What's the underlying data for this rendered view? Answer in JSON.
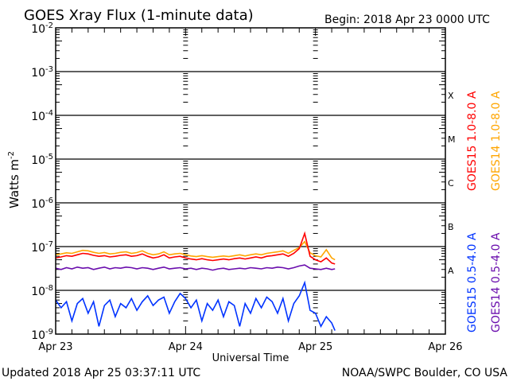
{
  "chart_data": {
    "type": "line",
    "title": "GOES Xray Flux (1-minute data)",
    "begin_label": "Begin:  2018 Apr 23 0000 UTC",
    "xlabel": "Universal Time",
    "ylabel": "Watts m",
    "ylabel_exp": "-2",
    "yscale": "log",
    "ylim": [
      1e-09,
      0.01
    ],
    "xlim_hours": [
      0,
      72
    ],
    "x_ticks": [
      {
        "hour": 0,
        "label": "Apr 23"
      },
      {
        "hour": 24,
        "label": "Apr 24"
      },
      {
        "hour": 48,
        "label": "Apr 25"
      },
      {
        "hour": 72,
        "label": "Apr 26"
      }
    ],
    "y_ticks": [
      {
        "value": 0.01,
        "base": "10",
        "exp": "-2"
      },
      {
        "value": 0.001,
        "base": "10",
        "exp": "-3"
      },
      {
        "value": 0.0001,
        "base": "10",
        "exp": "-4"
      },
      {
        "value": 1e-05,
        "base": "10",
        "exp": "-5"
      },
      {
        "value": 1e-06,
        "base": "10",
        "exp": "-6"
      },
      {
        "value": 1e-07,
        "base": "10",
        "exp": "-7"
      },
      {
        "value": 1e-08,
        "base": "10",
        "exp": "-8"
      },
      {
        "value": 1e-09,
        "base": "10",
        "exp": "-9"
      }
    ],
    "flare_classes": [
      {
        "label": "X",
        "value": 0.0003
      },
      {
        "label": "M",
        "value": 3e-05
      },
      {
        "label": "C",
        "value": 3e-06
      },
      {
        "label": "B",
        "value": 3e-07
      },
      {
        "label": "A",
        "value": 3e-08
      }
    ],
    "grid": "horizontal at decades 1e-3 to 1e-8",
    "hours": [
      0,
      1,
      2,
      3,
      4,
      5,
      6,
      7,
      8,
      9,
      10,
      11,
      12,
      13,
      14,
      15,
      16,
      17,
      18,
      19,
      20,
      21,
      22,
      23,
      24,
      25,
      26,
      27,
      28,
      29,
      30,
      31,
      32,
      33,
      34,
      35,
      36,
      37,
      38,
      39,
      40,
      41,
      42,
      43,
      44,
      45,
      46,
      47,
      48,
      49,
      50,
      51,
      51.6
    ],
    "series": [
      {
        "name": "GOES14 1.0-8.0 A",
        "color": "#ffa500",
        "values": [
          6.5e-08,
          6.8e-08,
          7.2e-08,
          7e-08,
          7.6e-08,
          8.2e-08,
          8e-08,
          7.4e-08,
          7e-08,
          7.3e-08,
          6.8e-08,
          7e-08,
          7.4e-08,
          7.6e-08,
          7e-08,
          7.3e-08,
          8e-08,
          7e-08,
          6.5e-08,
          6.8e-08,
          7.6e-08,
          6.5e-08,
          6.8e-08,
          7e-08,
          6.5e-08,
          6.1e-08,
          5.9e-08,
          6.2e-08,
          5.9e-08,
          5.7e-08,
          5.9e-08,
          6.1e-08,
          5.9e-08,
          6.2e-08,
          6.5e-08,
          6.1e-08,
          6.5e-08,
          6.8e-08,
          6.5e-08,
          7e-08,
          7.3e-08,
          7.6e-08,
          8e-08,
          7e-08,
          8.2e-08,
          9.5e-08,
          1.3e-07,
          7.2e-08,
          6.2e-08,
          5.8e-08,
          8.5e-08,
          5.5e-08,
          5e-08
        ]
      },
      {
        "name": "GOES15 1.0-8.0 A",
        "color": "#ff0000",
        "values": [
          5.5e-08,
          5.8e-08,
          6.2e-08,
          6e-08,
          6.5e-08,
          7e-08,
          6.8e-08,
          6.3e-08,
          6e-08,
          6.2e-08,
          5.8e-08,
          6e-08,
          6.3e-08,
          6.5e-08,
          6e-08,
          6.2e-08,
          6.8e-08,
          6e-08,
          5.5e-08,
          5.8e-08,
          6.5e-08,
          5.5e-08,
          5.8e-08,
          6e-08,
          5.5e-08,
          5.2e-08,
          5e-08,
          5.3e-08,
          5e-08,
          4.8e-08,
          5e-08,
          5.2e-08,
          5e-08,
          5.3e-08,
          5.5e-08,
          5.2e-08,
          5.5e-08,
          5.8e-08,
          5.5e-08,
          6e-08,
          6.2e-08,
          6.5e-08,
          6.8e-08,
          6e-08,
          7e-08,
          9e-08,
          2e-07,
          6e-08,
          5e-08,
          4.5e-08,
          5.5e-08,
          4.2e-08,
          4e-08
        ]
      },
      {
        "name": "GOES14 0.5-4.0 A",
        "color": "#6a0dad",
        "values": [
          3.2e-08,
          3e-08,
          3.3e-08,
          3.1e-08,
          3.4e-08,
          3.2e-08,
          3.3e-08,
          3e-08,
          3.2e-08,
          3.4e-08,
          3.1e-08,
          3.3e-08,
          3.2e-08,
          3.4e-08,
          3.3e-08,
          3.1e-08,
          3.3e-08,
          3.2e-08,
          3e-08,
          3.2e-08,
          3.4e-08,
          3.1e-08,
          3.2e-08,
          3.3e-08,
          3.1e-08,
          3.2e-08,
          3e-08,
          3.2e-08,
          3.1e-08,
          2.9e-08,
          3.1e-08,
          3.2e-08,
          3e-08,
          3.1e-08,
          3.2e-08,
          3.1e-08,
          3.3e-08,
          3.2e-08,
          3.1e-08,
          3.3e-08,
          3.2e-08,
          3.4e-08,
          3.3e-08,
          3.1e-08,
          3.3e-08,
          3.6e-08,
          3.8e-08,
          3.2e-08,
          3.1e-08,
          3e-08,
          3.2e-08,
          3e-08,
          3.1e-08
        ]
      },
      {
        "name": "GOES15 0.5-4.0 A",
        "color": "#0033ff",
        "values": [
          6e-09,
          4e-09,
          5.5e-09,
          2e-09,
          5e-09,
          6.5e-09,
          3e-09,
          5.5e-09,
          1.5e-09,
          4.5e-09,
          6e-09,
          2.5e-09,
          5e-09,
          4e-09,
          6.5e-09,
          3.5e-09,
          5.5e-09,
          7.5e-09,
          4.5e-09,
          6e-09,
          7e-09,
          3e-09,
          5.5e-09,
          8.5e-09,
          6.5e-09,
          4e-09,
          6e-09,
          2e-09,
          5e-09,
          3.5e-09,
          6e-09,
          2.5e-09,
          5.5e-09,
          4.5e-09,
          1.5e-09,
          5e-09,
          3e-09,
          6.5e-09,
          4e-09,
          7e-09,
          5.5e-09,
          3e-09,
          6.5e-09,
          2e-09,
          5e-09,
          7.5e-09,
          1.5e-08,
          3.5e-09,
          3e-09,
          1.5e-09,
          2.5e-09,
          1.8e-09,
          1.2e-09
        ]
      }
    ],
    "legend": [
      {
        "text": "GOES15 1.0-8.0 A",
        "color": "#ff0000"
      },
      {
        "text": "GOES14 1.0-8.0 A",
        "color": "#ffa500"
      },
      {
        "text": "GOES15 0.5-4.0 A",
        "color": "#0033ff"
      },
      {
        "text": "GOES14 0.5-4.0 A",
        "color": "#6a0dad"
      }
    ],
    "legend_placement": "right, rotated vertical"
  },
  "footer": {
    "updated": "Updated 2018 Apr 25 03:37:11 UTC",
    "credit": "NOAA/SWPC Boulder, CO USA"
  }
}
